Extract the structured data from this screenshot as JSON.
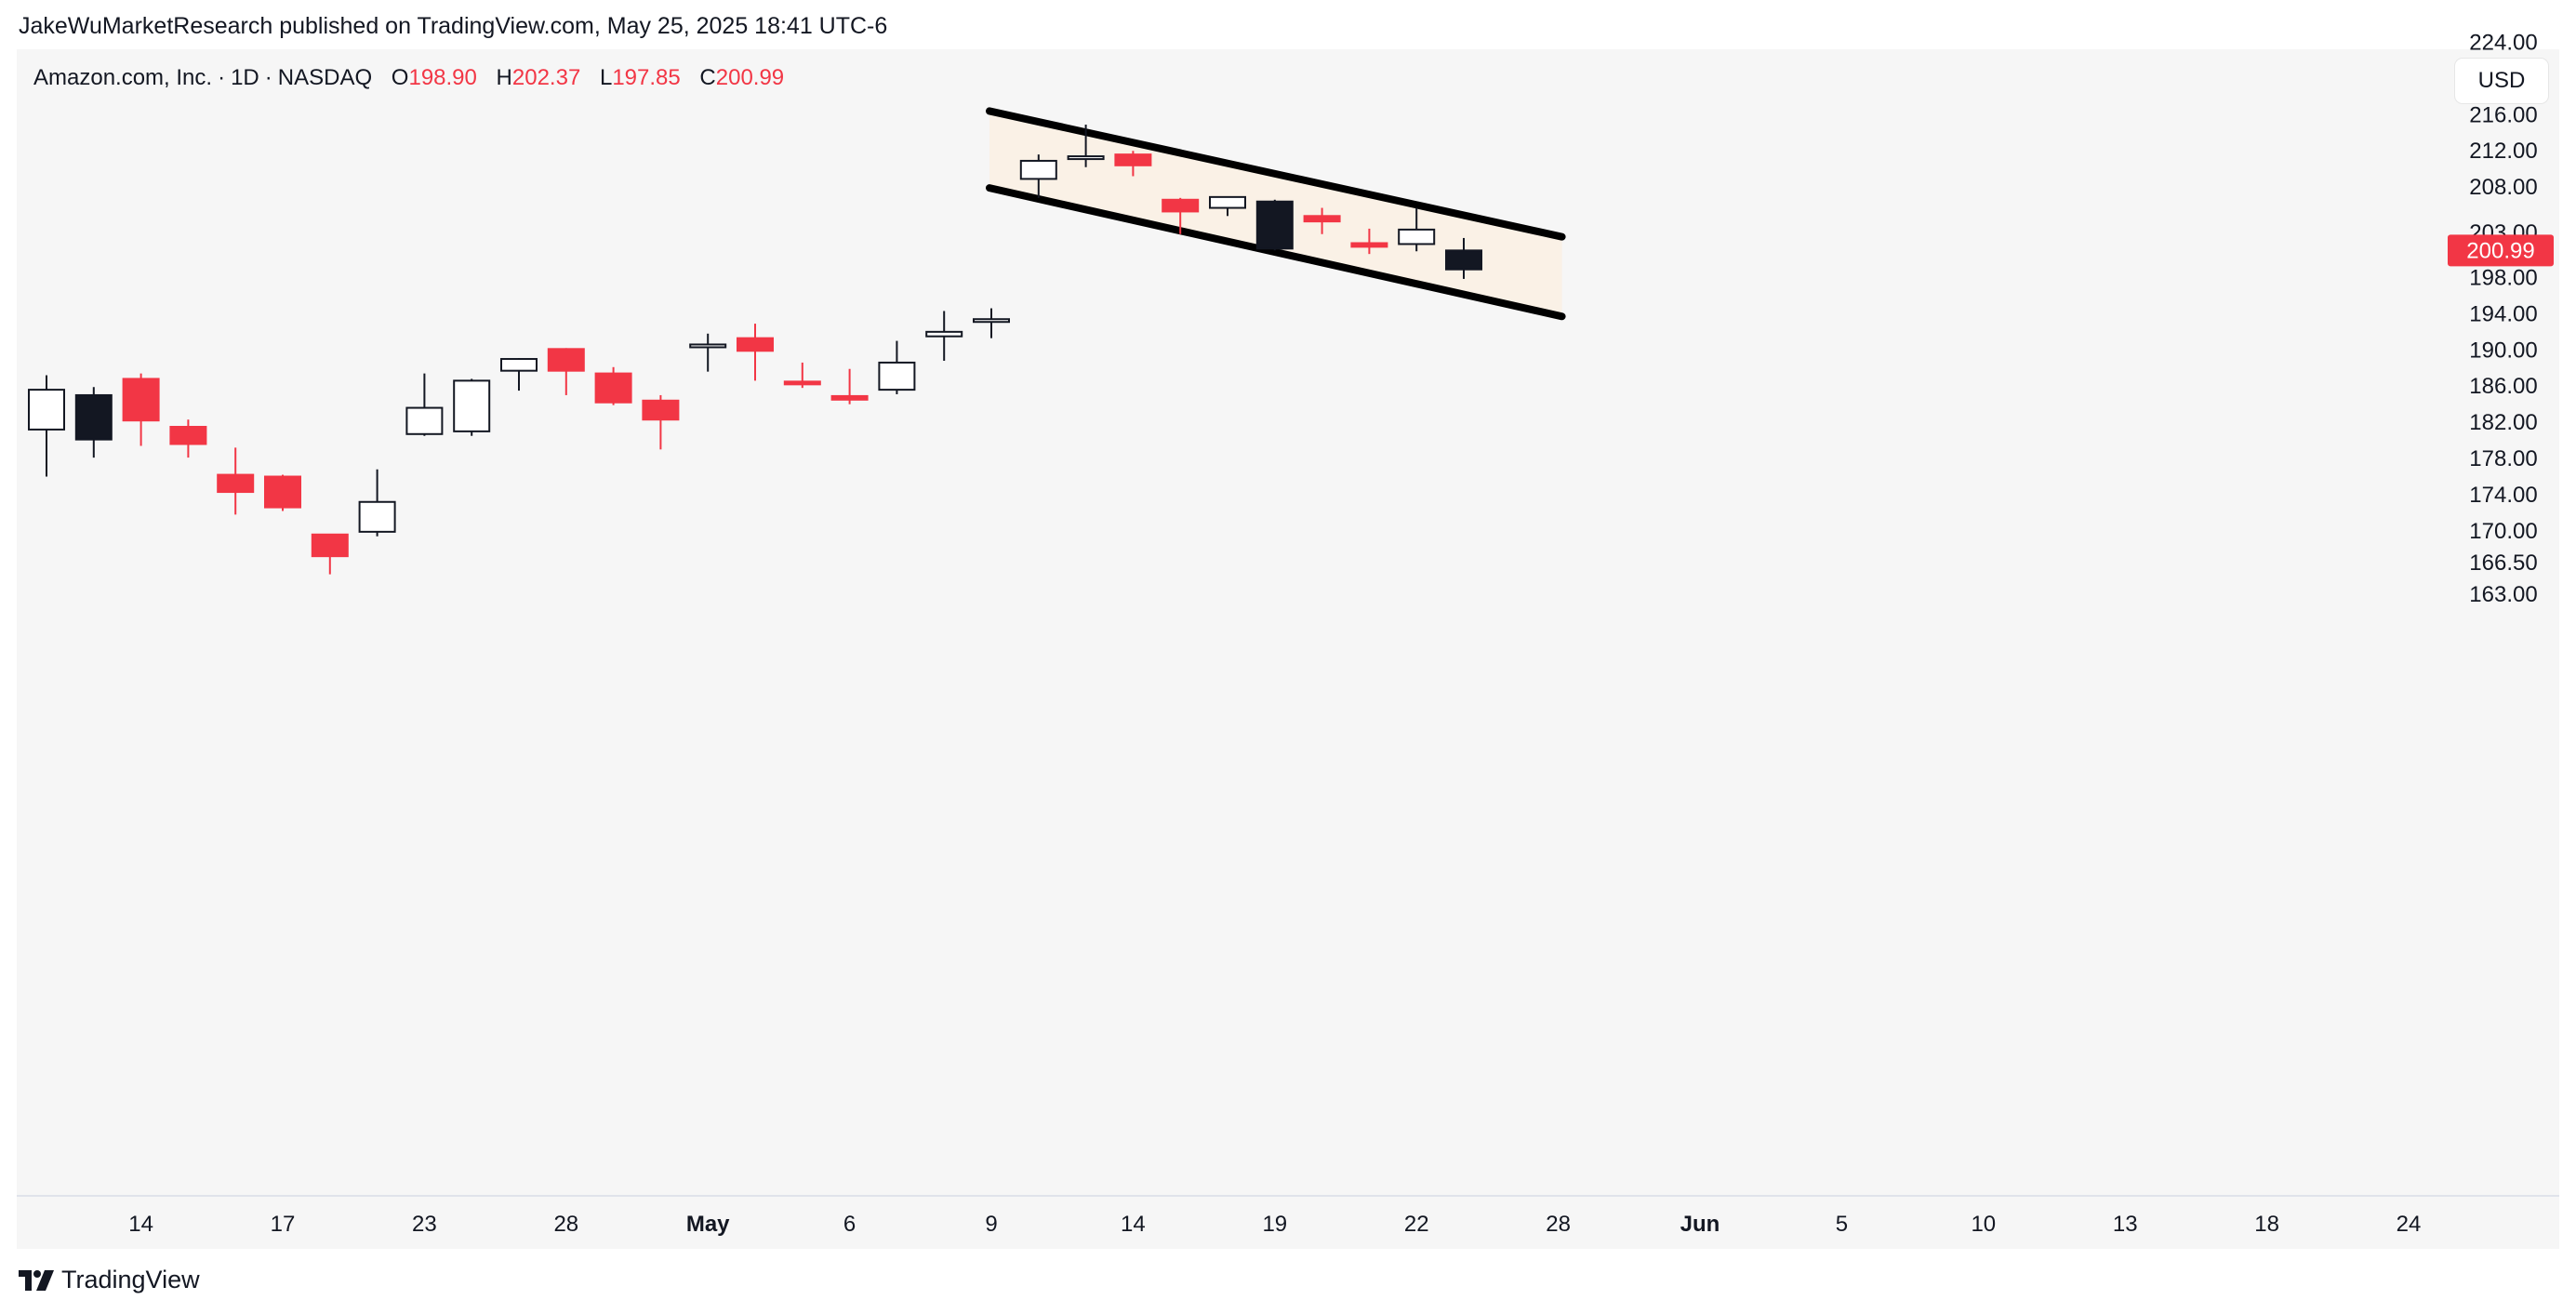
{
  "header": {
    "publisher_line": "JakeWuMarketResearch published on TradingView.com, May 25, 2025 18:41 UTC-6"
  },
  "legend": {
    "symbol": "Amazon.com, Inc.",
    "interval": "1D",
    "exchange": "NASDAQ",
    "o_label": "O",
    "o_value": "198.90",
    "h_label": "H",
    "h_value": "202.37",
    "l_label": "L",
    "l_value": "197.85",
    "c_label": "C",
    "c_value": "200.99"
  },
  "currency_button": "USD",
  "footer": {
    "brand": "TradingView",
    "logo_icon": "tradingview-logo-icon"
  },
  "colors": {
    "up": "#131722",
    "down": "#f23645",
    "channel_fill": "#faf1e6",
    "channel_line": "#000000",
    "panel_bg": "#f6f6f6",
    "last_price_bg": "#f23645"
  },
  "chart_data": {
    "type": "candlestick",
    "symbol": "AMZN",
    "y_axis_ticks": [
      224,
      216,
      212,
      208,
      203,
      198,
      194,
      190,
      186,
      182,
      178,
      174,
      170,
      166.5,
      163
    ],
    "y_axis_labels": [
      "224.00",
      "216.00",
      "212.00",
      "208.00",
      "203.00",
      "198.00",
      "194.00",
      "190.00",
      "186.00",
      "182.00",
      "178.00",
      "174.00",
      "170.00",
      "166.50",
      "163.00"
    ],
    "x_axis_labels": [
      {
        "label": "14",
        "slot": 2,
        "bold": false
      },
      {
        "label": "17",
        "slot": 5,
        "bold": false
      },
      {
        "label": "23",
        "slot": 8,
        "bold": false
      },
      {
        "label": "28",
        "slot": 11,
        "bold": false
      },
      {
        "label": "May",
        "slot": 14,
        "bold": true
      },
      {
        "label": "6",
        "slot": 17,
        "bold": false
      },
      {
        "label": "9",
        "slot": 20,
        "bold": false
      },
      {
        "label": "14",
        "slot": 23,
        "bold": false
      },
      {
        "label": "19",
        "slot": 26,
        "bold": false
      },
      {
        "label": "22",
        "slot": 29,
        "bold": false
      },
      {
        "label": "28",
        "slot": 32,
        "bold": false
      },
      {
        "label": "Jun",
        "slot": 35,
        "bold": true
      },
      {
        "label": "5",
        "slot": 38,
        "bold": false
      },
      {
        "label": "10",
        "slot": 41,
        "bold": false
      },
      {
        "label": "13",
        "slot": 44,
        "bold": false
      },
      {
        "label": "18",
        "slot": 47,
        "bold": false
      },
      {
        "label": "24",
        "slot": 50,
        "bold": false
      }
    ],
    "candles": [
      {
        "slot": 0,
        "open": 181.2,
        "high": 187.2,
        "low": 176.0,
        "close": 185.6
      },
      {
        "slot": 1,
        "open": 180.1,
        "high": 185.9,
        "low": 178.1,
        "close": 185.0
      },
      {
        "slot": 2,
        "open": 186.8,
        "high": 187.4,
        "low": 179.4,
        "close": 182.2
      },
      {
        "slot": 3,
        "open": 181.5,
        "high": 182.3,
        "low": 178.1,
        "close": 179.6
      },
      {
        "slot": 4,
        "open": 176.2,
        "high": 179.2,
        "low": 171.8,
        "close": 174.3
      },
      {
        "slot": 5,
        "open": 176.0,
        "high": 176.2,
        "low": 172.2,
        "close": 172.6
      },
      {
        "slot": 6,
        "open": 169.6,
        "high": 169.6,
        "low": 165.2,
        "close": 167.2
      },
      {
        "slot": 7,
        "open": 169.9,
        "high": 176.8,
        "low": 169.4,
        "close": 173.2
      },
      {
        "slot": 8,
        "open": 180.7,
        "high": 187.4,
        "low": 180.5,
        "close": 183.6
      },
      {
        "slot": 9,
        "open": 181.0,
        "high": 186.8,
        "low": 180.5,
        "close": 186.6
      },
      {
        "slot": 10,
        "open": 187.7,
        "high": 189.1,
        "low": 185.5,
        "close": 189.0
      },
      {
        "slot": 11,
        "open": 190.1,
        "high": 190.2,
        "low": 185.0,
        "close": 187.7
      },
      {
        "slot": 12,
        "open": 187.4,
        "high": 188.1,
        "low": 183.9,
        "close": 184.2
      },
      {
        "slot": 13,
        "open": 184.4,
        "high": 185.0,
        "low": 179.0,
        "close": 182.3
      },
      {
        "slot": 14,
        "open": 190.4,
        "high": 191.8,
        "low": 187.6,
        "close": 190.6
      },
      {
        "slot": 15,
        "open": 191.3,
        "high": 192.9,
        "low": 186.6,
        "close": 189.9
      },
      {
        "slot": 16,
        "open": 186.5,
        "high": 188.6,
        "low": 185.8,
        "close": 186.3
      },
      {
        "slot": 17,
        "open": 184.9,
        "high": 187.9,
        "low": 184.0,
        "close": 184.5
      },
      {
        "slot": 18,
        "open": 185.6,
        "high": 191.0,
        "low": 185.1,
        "close": 188.6
      },
      {
        "slot": 19,
        "open": 191.5,
        "high": 194.3,
        "low": 188.8,
        "close": 192.0
      },
      {
        "slot": 20,
        "open": 193.2,
        "high": 194.6,
        "low": 191.3,
        "close": 193.4
      },
      {
        "slot": 21,
        "open": 208.9,
        "high": 211.6,
        "low": 206.8,
        "close": 210.9
      },
      {
        "slot": 22,
        "open": 211.1,
        "high": 214.9,
        "low": 210.2,
        "close": 211.4
      },
      {
        "slot": 23,
        "open": 211.6,
        "high": 212.0,
        "low": 209.2,
        "close": 210.4
      },
      {
        "slot": 24,
        "open": 206.6,
        "high": 206.8,
        "low": 202.8,
        "close": 205.3
      },
      {
        "slot": 25,
        "open": 205.7,
        "high": 206.9,
        "low": 204.8,
        "close": 206.9
      },
      {
        "slot": 26,
        "open": 201.2,
        "high": 206.6,
        "low": 201.0,
        "close": 206.4
      },
      {
        "slot": 27,
        "open": 204.8,
        "high": 205.7,
        "low": 202.8,
        "close": 204.2
      },
      {
        "slot": 28,
        "open": 201.8,
        "high": 203.4,
        "low": 200.6,
        "close": 201.4
      },
      {
        "slot": 29,
        "open": 201.7,
        "high": 205.7,
        "low": 200.9,
        "close": 203.3
      },
      {
        "slot": 30,
        "open": 198.9,
        "high": 202.37,
        "low": 197.85,
        "close": 200.99
      }
    ],
    "channel": {
      "start_slot": 20.0,
      "end_slot": 32.0,
      "upper": [
        216.4,
        202.5
      ],
      "lower": [
        207.9,
        193.7
      ]
    },
    "last_price": "200.99",
    "grid": false
  }
}
